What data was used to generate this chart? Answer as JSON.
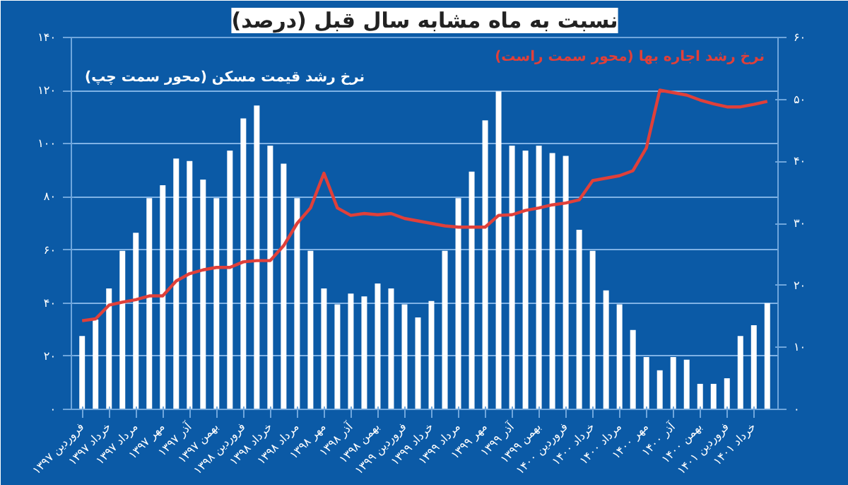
{
  "chart_data": {
    "type": "bar",
    "title": "نسبت به ماه مشابه سال قبل (درصد)",
    "categories": [
      "فروردین ۱۳۹۷",
      null,
      "خرداد ۱۳۹۷",
      null,
      "مرداد ۱۳۹۷",
      null,
      "مهر ۱۳۹۷",
      null,
      "آذر ۱۳۹۷",
      null,
      "بهمن ۱۳۹۷",
      null,
      "فروردین ۱۳۹۸",
      null,
      "خرداد ۱۳۹۸",
      null,
      "مرداد ۱۳۹۸",
      null,
      "مهر ۱۳۹۸",
      null,
      "آذر ۱۳۹۸",
      null,
      "بهمن ۱۳۹۸",
      null,
      "فروردین ۱۳۹۹",
      null,
      "خرداد ۱۳۹۹",
      null,
      "مرداد ۱۳۹۹",
      null,
      "مهر ۱۳۹۹",
      null,
      "آذر ۱۳۹۹",
      null,
      "بهمن ۱۳۹۹",
      null,
      "فروردین ۱۴۰۰",
      null,
      "خرداد ۱۴۰۰",
      null,
      "مرداد ۱۴۰۰",
      null,
      "مهر ۱۴۰۰",
      null,
      "آذر ۱۴۰۰",
      null,
      "بهمن ۱۴۰۰",
      null,
      "فروردین ۱۴۰۱",
      null,
      "خرداد ۱۴۰۱",
      null
    ],
    "series": [
      {
        "name": "نرخ رشد قیمت مسکن (محور سمت چپ)",
        "color": "#ffffff",
        "values": [
          27.6,
          33.8,
          45.5,
          59.7,
          66.5,
          79.5,
          84.4,
          94.4,
          93.5,
          86.5,
          79.5,
          97.4,
          109.5,
          114.4,
          99.3,
          92.5,
          79.5,
          59.7,
          45.5,
          39.5,
          43.6,
          42.5,
          47.4,
          45.5,
          39.5,
          34.6,
          40.8,
          59.7,
          79.5,
          89.5,
          108.8,
          119.7,
          99.3,
          97.4,
          99.3,
          96.5,
          95.4,
          67.6,
          59.7,
          44.8,
          39.5,
          29.9,
          19.7,
          14.7,
          19.7,
          18.7,
          9.6,
          9.6,
          11.7,
          27.6,
          31.7,
          40
        ]
      },
      {
        "name": "نرخ رشد اجاره بها (محور سمت راست)",
        "type": "line",
        "axis": "y2",
        "color": "#e0403a",
        "values": [
          14.3,
          14.6,
          16.8,
          17.3,
          17.7,
          18.3,
          18.3,
          20.7,
          21.9,
          22.5,
          22.9,
          22.9,
          23.8,
          24.0,
          24.0,
          26.4,
          30.0,
          32.5,
          38.1,
          32.5,
          31.3,
          31.6,
          31.4,
          31.6,
          30.8,
          30.4,
          30.0,
          29.6,
          29.4,
          29.4,
          29.4,
          31.3,
          31.4,
          32.1,
          32.5,
          33.0,
          33.3,
          33.8,
          36.9,
          37.3,
          37.7,
          38.5,
          42.2,
          51.5,
          51.1,
          50.7,
          49.9,
          49.3,
          48.8,
          48.8,
          49.2,
          49.7
        ]
      }
    ],
    "ylim": [
      0,
      140
    ],
    "yticks": [
      {
        "value": 0,
        "label": "۰"
      },
      {
        "value": 20,
        "label": "۲۰"
      },
      {
        "value": 40,
        "label": "۴۰"
      },
      {
        "value": 60,
        "label": "۶۰"
      },
      {
        "value": 80,
        "label": "۸۰"
      },
      {
        "value": 100,
        "label": "۱۰۰"
      },
      {
        "value": 120,
        "label": "۱۲۰"
      },
      {
        "value": 140,
        "label": "۱۴۰"
      }
    ],
    "y2lim": [
      0,
      60
    ],
    "y2ticks": [
      {
        "value": 0,
        "label": "۰"
      },
      {
        "value": 10,
        "label": "۱۰"
      },
      {
        "value": 20,
        "label": "۲۰"
      },
      {
        "value": 30,
        "label": "۳۰"
      },
      {
        "value": 40,
        "label": "۴۰"
      },
      {
        "value": 50,
        "label": "۵۰"
      },
      {
        "value": 60,
        "label": "۶۰"
      }
    ],
    "grid": "y",
    "marker": "none",
    "line_style": "solid"
  }
}
